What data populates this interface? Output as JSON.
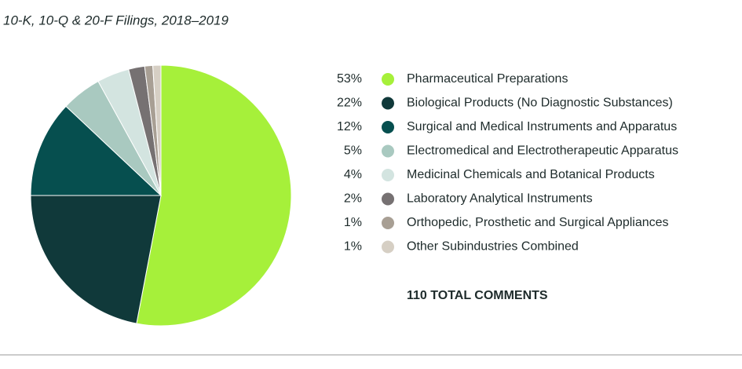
{
  "chart_data": {
    "type": "pie",
    "subtitle": "10-K, 10-Q & 20-F Filings, 2018–2019",
    "categories": [
      "Pharmaceutical Preparations",
      "Biological Products (No Diagnostic Substances)",
      "Surgical and Medical Instruments and Apparatus",
      "Electromedical and Electrotherapeutic Apparatus",
      "Medicinal Chemicals and Botanical Products",
      "Laboratory Analytical Instruments",
      "Orthopedic, Prosthetic and Surgical Appliances",
      "Other Subindustries Combined"
    ],
    "values": [
      53,
      22,
      12,
      5,
      4,
      2,
      1,
      1
    ],
    "value_labels": [
      "53%",
      "22%",
      "12%",
      "5%",
      "4%",
      "2%",
      "1%",
      "1%"
    ],
    "colors": [
      "#a6f03a",
      "#10393a",
      "#064f4f",
      "#a9c9c0",
      "#d3e4e0",
      "#767172",
      "#a89f94",
      "#d6cfc4"
    ],
    "annotation": "110 TOTAL COMMENTS"
  }
}
